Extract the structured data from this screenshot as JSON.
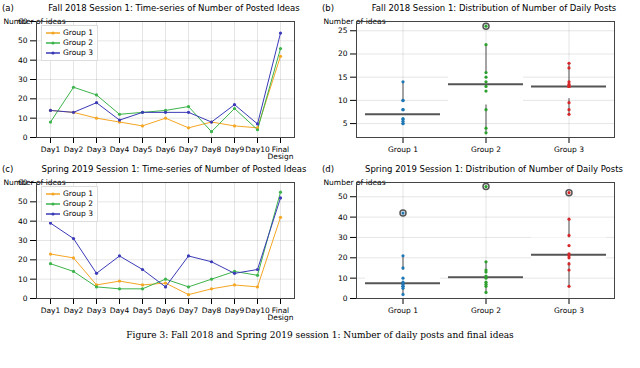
{
  "caption": "Figure 3: Fall 2018 and Spring 2019 session 1: Number of daily posts and final ideas",
  "chart_data": [
    {
      "type": "line",
      "annotations": [
        "(a)"
      ],
      "title": "Fall 2018 Session 1: Time-series of Number of Posted Ideas",
      "categories": [
        "Day1",
        "Day2",
        "Day3",
        "Day4",
        "Day5",
        "Day6",
        "Day7",
        "Day8",
        "Day9",
        "Day10",
        "Final Design"
      ],
      "series": [
        {
          "name": "Group 1",
          "color": "#f5a623",
          "values": [
            14,
            13,
            10,
            8,
            6,
            10,
            5,
            8,
            6,
            5,
            42
          ]
        },
        {
          "name": "Group 2",
          "color": "#3cb44b",
          "values": [
            8,
            26,
            22,
            12,
            13,
            14,
            16,
            3,
            15,
            4,
            46
          ]
        },
        {
          "name": "Group 3",
          "color": "#3a3ab8",
          "values": [
            14,
            13,
            18,
            9,
            13,
            13,
            13,
            8,
            17,
            7,
            54
          ]
        }
      ],
      "ylabel": "Number of ideas",
      "ylim": [
        0,
        60
      ],
      "yticks": [
        0,
        10,
        20,
        30,
        40,
        50,
        60
      ],
      "grid": true,
      "legend": "upper left",
      "marker": "o"
    },
    {
      "type": "box",
      "annotations": [
        "(b)"
      ],
      "title": "Fall 2018 Session 1: Distribution of Number of Daily Posts",
      "categories": [
        "Group 1",
        "Group 2",
        "Group 3"
      ],
      "values": [
        [
          5,
          5,
          5.5,
          6,
          8,
          8,
          10,
          10,
          14,
          6
        ],
        [
          3,
          4,
          8,
          12,
          13,
          14,
          15,
          16,
          22,
          26
        ],
        [
          7,
          8,
          9.5,
          13,
          13,
          13,
          13.5,
          14,
          17,
          18
        ]
      ],
      "colors": [
        "#1f77b4",
        "#2ca02c",
        "#d62728"
      ],
      "ylabel": "Number of ideas",
      "ylim": [
        2,
        27
      ],
      "yticks": [
        5,
        10,
        15,
        20,
        25
      ],
      "grid": true
    },
    {
      "type": "line",
      "annotations": [
        "(c)"
      ],
      "title": "Spring 2019 Session 1: Time-series of Number of Posted Ideas",
      "categories": [
        "Day1",
        "Day2",
        "Day3",
        "Day4",
        "Day5",
        "Day6",
        "Day7",
        "Day8",
        "Day9",
        "Day10",
        "Final Design"
      ],
      "series": [
        {
          "name": "Group 1",
          "color": "#f5a623",
          "values": [
            23,
            21,
            7,
            9,
            7,
            8,
            2,
            5,
            7,
            6,
            42
          ]
        },
        {
          "name": "Group 2",
          "color": "#3cb44b",
          "values": [
            18,
            14,
            6,
            5,
            5,
            10,
            6,
            10,
            14,
            12,
            55
          ]
        },
        {
          "name": "Group 3",
          "color": "#3a3ab8",
          "values": [
            39,
            31,
            13,
            22,
            15,
            6,
            22,
            19,
            13,
            15,
            52
          ]
        }
      ],
      "ylabel": "Number of ideas",
      "ylim": [
        0,
        60
      ],
      "yticks": [
        0,
        10,
        20,
        30,
        40,
        50,
        60
      ],
      "grid": true,
      "legend": "upper left",
      "marker": "o"
    },
    {
      "type": "box",
      "annotations": [
        "(d)"
      ],
      "title": "Spring 2019 Session 1: Distribution of Number of Daily Posts",
      "categories": [
        "Group 1",
        "Group 2",
        "Group 3"
      ],
      "values": [
        [
          2,
          5,
          6,
          6,
          7,
          8,
          10,
          15,
          21,
          42
        ],
        [
          3,
          6,
          7,
          8,
          10,
          11,
          13,
          14,
          18,
          55
        ],
        [
          6,
          14,
          17,
          20,
          21,
          22,
          26,
          31,
          39,
          52
        ]
      ],
      "colors": [
        "#1f77b4",
        "#2ca02c",
        "#d62728"
      ],
      "ylabel": "Number of ideas",
      "ylim": [
        0,
        57
      ],
      "yticks": [
        0,
        10,
        20,
        30,
        40,
        50
      ],
      "grid": true
    }
  ]
}
